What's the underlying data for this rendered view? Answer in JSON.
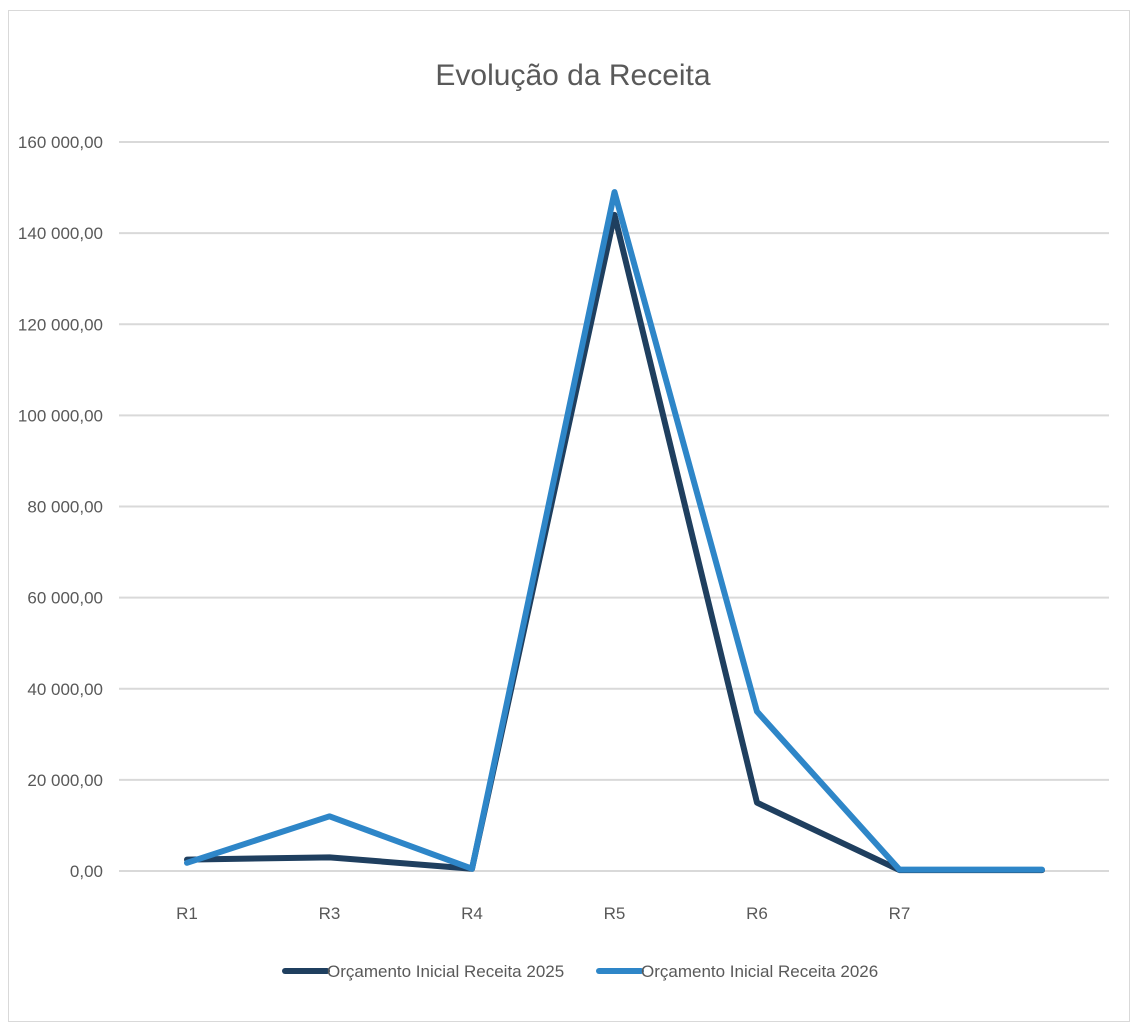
{
  "chart_data": {
    "type": "line",
    "title": "Evolução da Receita",
    "xlabel": "",
    "ylabel": "",
    "categories": [
      "R1",
      "R3",
      "R4",
      "R5",
      "R6",
      "R7",
      ""
    ],
    "y_tick_labels": [
      "0,00",
      "20 000,00",
      "40 000,00",
      "60 000,00",
      "80 000,00",
      "100 000,00",
      "120 000,00",
      "140 000,00",
      "160 000,00"
    ],
    "ylim": [
      0,
      160000
    ],
    "y_step": 20000,
    "grid": true,
    "legend_position": "bottom",
    "series": [
      {
        "name": "Orçamento Inicial Receita 2025",
        "color": "#1f3f5f",
        "values": [
          2500,
          3000,
          500,
          144000,
          15000,
          200,
          200
        ]
      },
      {
        "name": "Orçamento Inicial Receita 2026",
        "color": "#2e86c8",
        "values": [
          1800,
          12000,
          500,
          149000,
          35000,
          300,
          300
        ]
      }
    ]
  }
}
